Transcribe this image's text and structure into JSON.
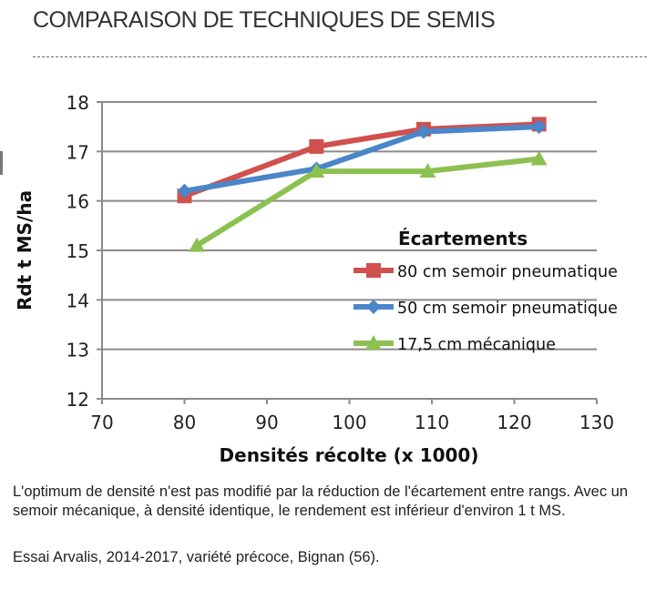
{
  "title": "COMPARAISON DE TECHNIQUES DE SEMIS",
  "chart_data": {
    "type": "line",
    "xlabel": "Densités récolte (x 1000)",
    "ylabel": "Rdt t MS/ha",
    "xlim": [
      70,
      130
    ],
    "ylim": [
      12,
      18
    ],
    "xticks": [
      "70",
      "80",
      "90",
      "100",
      "110",
      "120",
      "130"
    ],
    "yticks": [
      "12",
      "13",
      "14",
      "15",
      "16",
      "17",
      "18"
    ],
    "grid": "horizontal",
    "legend_title": "Écartements",
    "legend_position": "right",
    "series": [
      {
        "name": "80 cm semoir pneumatique",
        "color": "#d0504d",
        "marker": "square",
        "x": [
          80,
          96,
          109,
          123
        ],
        "y": [
          16.1,
          17.1,
          17.45,
          17.55
        ]
      },
      {
        "name": "50 cm semoir pneumatique",
        "color": "#4a86c8",
        "marker": "diamond",
        "x": [
          80,
          96,
          109,
          123
        ],
        "y": [
          16.2,
          16.65,
          17.4,
          17.5
        ]
      },
      {
        "name": "17,5 cm mécanique",
        "color": "#8cc152",
        "marker": "triangle",
        "x": [
          81.5,
          96,
          109.5,
          123
        ],
        "y": [
          15.1,
          16.6,
          16.6,
          16.85
        ]
      }
    ]
  },
  "caption": "L'optimum de densité n'est pas modifié par la réduction de l'écartement entre rangs. Avec un semoir mécanique, à densité identique, le rendement est inférieur d'environ 1 t MS.",
  "source": "Essai Arvalis, 2014-2017, variété précoce, Bignan (56)."
}
